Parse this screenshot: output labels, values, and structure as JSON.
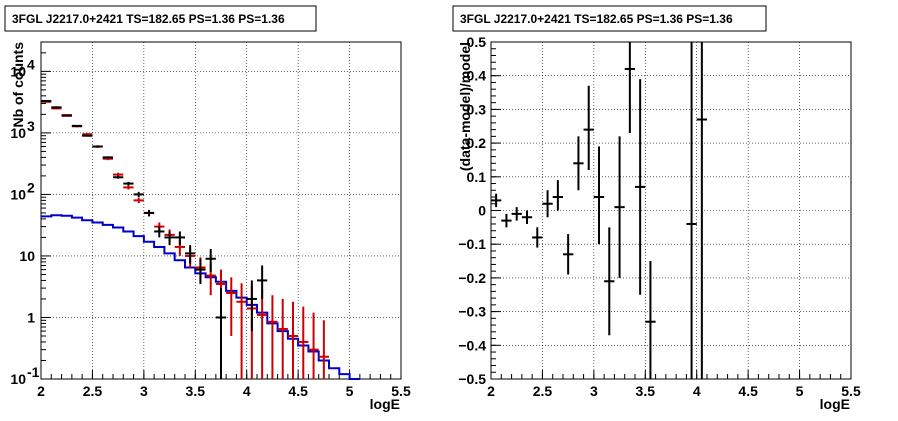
{
  "chart_data": [
    {
      "type": "line",
      "title": "3FGL J2217.0+2421 TS=182.65 PS=1.36 PS=1.36",
      "xlabel": "logE",
      "ylabel": "Nb of counts",
      "xlim": [
        2,
        5.5
      ],
      "ylim": [
        0.1,
        30000
      ],
      "yscale": "log",
      "grid": true,
      "x_ticks": [
        "2",
        "2.5",
        "3",
        "3.5",
        "4",
        "4.5",
        "5",
        "5.5"
      ],
      "y_ticks": [
        {
          "value": 0.1,
          "base": "10",
          "exp": "-1"
        },
        {
          "value": 1,
          "base": "1",
          "exp": ""
        },
        {
          "value": 10,
          "base": "10",
          "exp": ""
        },
        {
          "value": 100,
          "base": "10",
          "exp": "2"
        },
        {
          "value": 1000,
          "base": "10",
          "exp": "3"
        },
        {
          "value": 10000,
          "base": "10",
          "exp": "4"
        }
      ],
      "colors": {
        "data": "#000000",
        "model": "#cc0000",
        "source": "#0000cc"
      },
      "series": [
        {
          "role": "data",
          "x": [
            2.05,
            2.15,
            2.25,
            2.35,
            2.45,
            2.55,
            2.65,
            2.75,
            2.85,
            2.95,
            3.05,
            3.15,
            3.25,
            3.35,
            3.45,
            3.55,
            3.65,
            3.75,
            3.85,
            3.95,
            4.05,
            4.15
          ],
          "y": [
            3300,
            2600,
            1900,
            1300,
            900,
            600,
            400,
            190,
            150,
            100,
            50,
            25,
            20,
            20,
            11,
            6,
            9,
            1,
            0,
            0,
            2,
            4
          ],
          "ylo": [
            3200,
            2500,
            1850,
            1260,
            870,
            580,
            385,
            180,
            140,
            90,
            44,
            20,
            15,
            15,
            7.5,
            3.5,
            5.5,
            0.1,
            0,
            0,
            0.6,
            2
          ],
          "yhi": [
            3400,
            2700,
            1950,
            1340,
            930,
            620,
            415,
            200,
            160,
            110,
            56,
            30,
            25,
            25,
            15,
            9,
            13,
            3,
            0,
            0,
            4,
            7
          ]
        },
        {
          "role": "model",
          "x": [
            2.05,
            2.15,
            2.25,
            2.35,
            2.45,
            2.55,
            2.65,
            2.75,
            2.85,
            2.95,
            3.05,
            3.15,
            3.25,
            3.35,
            3.45,
            3.55,
            3.65,
            3.75,
            3.85,
            3.95,
            4.05,
            4.15,
            4.25,
            4.35,
            4.45,
            4.55,
            4.65,
            4.75
          ],
          "y": [
            3200,
            2500,
            1950,
            1280,
            950,
            600,
            380,
            210,
            130,
            80,
            50,
            30,
            22,
            14,
            10,
            6.5,
            4.8,
            3.5,
            2.5,
            1.8,
            1.4,
            1.1,
            0.85,
            0.65,
            0.5,
            0.4,
            0.3,
            0.23
          ],
          "ylo": [
            3100,
            2420,
            1880,
            1230,
            910,
            570,
            360,
            195,
            120,
            72,
            44,
            25,
            17,
            10,
            6.5,
            3.8,
            2.3,
            1.5,
            0.5,
            0.1,
            0.1,
            0.1,
            0.1,
            0.1,
            0.1,
            0.1,
            0.1,
            0.1
          ],
          "yhi": [
            3300,
            2580,
            2020,
            1330,
            990,
            630,
            400,
            225,
            140,
            88,
            56,
            35,
            27,
            18,
            13.5,
            9.5,
            7.5,
            6,
            4.5,
            3.6,
            3.2,
            2.8,
            2.3,
            2,
            1.8,
            1.5,
            1.2,
            0.9
          ]
        },
        {
          "role": "source",
          "x": [
            2.0,
            2.1,
            2.2,
            2.3,
            2.4,
            2.5,
            2.6,
            2.7,
            2.8,
            2.9,
            3.0,
            3.1,
            3.2,
            3.3,
            3.4,
            3.5,
            3.6,
            3.7,
            3.8,
            3.9,
            4.0,
            4.1,
            4.2,
            4.3,
            4.4,
            4.5,
            4.6,
            4.7,
            4.8,
            4.9,
            5.0
          ],
          "y": [
            44,
            46,
            45,
            42,
            38,
            35,
            32,
            29,
            25,
            21,
            17,
            14,
            11,
            8.5,
            6.5,
            5.2,
            4.5,
            3.8,
            2.7,
            2.1,
            1.6,
            1.2,
            0.8,
            0.6,
            0.45,
            0.35,
            0.28,
            0.2,
            0.15,
            0.12,
            0.1
          ]
        }
      ]
    },
    {
      "type": "scatter",
      "title": "3FGL J2217.0+2421 TS=182.65 PS=1.36 PS=1.36",
      "xlabel": "logE",
      "ylabel": "(data-model)/model",
      "xlim": [
        2,
        5.5
      ],
      "ylim": [
        -0.5,
        0.5
      ],
      "grid": true,
      "x_ticks": [
        "2",
        "2.5",
        "3",
        "3.5",
        "4",
        "4.5",
        "5",
        "5.5"
      ],
      "y_ticks": [
        "−0.5",
        "−0.4",
        "−0.3",
        "−0.2",
        "−0.1",
        "0",
        "0.1",
        "0.2",
        "0.3",
        "0.4",
        "0.5"
      ],
      "colors": {
        "points": "#000000"
      },
      "series": [
        {
          "x": [
            2.05,
            2.15,
            2.25,
            2.35,
            2.45,
            2.55,
            2.65,
            2.75,
            2.85,
            2.95,
            3.05,
            3.15,
            3.25,
            3.35,
            3.45,
            3.55,
            3.95,
            4.05
          ],
          "y": [
            0.03,
            -0.03,
            -0.01,
            -0.02,
            -0.08,
            0.02,
            0.04,
            -0.13,
            0.14,
            0.24,
            0.04,
            -0.21,
            0.01,
            0.42,
            0.07,
            -0.33,
            -0.04,
            0.27
          ],
          "ylo": [
            0.01,
            -0.05,
            -0.03,
            -0.04,
            -0.11,
            -0.02,
            0.0,
            -0.19,
            0.06,
            0.12,
            -0.1,
            -0.37,
            -0.2,
            0.23,
            -0.25,
            -0.5,
            -0.5,
            -0.5
          ],
          "yhi": [
            0.05,
            -0.01,
            0.01,
            0.0,
            -0.05,
            0.06,
            0.09,
            -0.07,
            0.22,
            0.37,
            0.19,
            -0.05,
            0.22,
            0.6,
            0.39,
            -0.15,
            0.5,
            0.5
          ]
        }
      ]
    }
  ]
}
